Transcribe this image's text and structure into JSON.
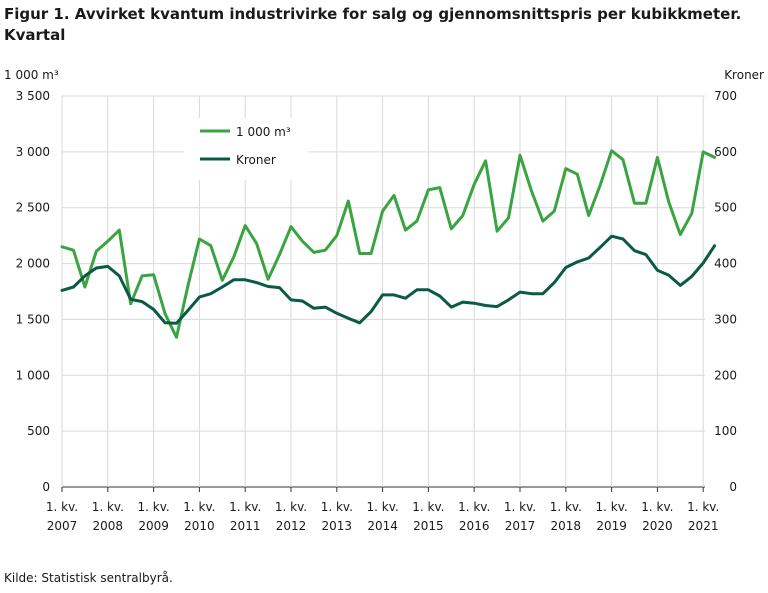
{
  "header": {
    "title": "Figur 1. Avvirket kvantum industrivirke for salg og gjennomsnittspris per kubikkmeter. Kvartal"
  },
  "footer": {
    "source": "Kilde: Statistisk sentralbyrå."
  },
  "chart_data": {
    "type": "line",
    "title": "Figur 1. Avvirket kvantum industrivirke for salg og gjennomsnittspris per kubikkmeter. Kvartal",
    "ylabel_left": "1 000 m³",
    "ylabel_right": "Kroner",
    "ylim_left": [
      0,
      3500
    ],
    "ylim_right": [
      0,
      700
    ],
    "yticks_left": [
      "0",
      "500",
      "1 000",
      "1 500",
      "2 000",
      "2 500",
      "3 000",
      "3 500"
    ],
    "yticks_right": [
      "0",
      "100",
      "200",
      "300",
      "400",
      "500",
      "600",
      "700"
    ],
    "grid": true,
    "legend_position": "top-left",
    "x_tick_labels": [
      {
        "line1": "1. kv.",
        "line2": "2007"
      },
      {
        "line1": "1. kv.",
        "line2": "2008"
      },
      {
        "line1": "1. kv.",
        "line2": "2009"
      },
      {
        "line1": "1. kv.",
        "line2": "2010"
      },
      {
        "line1": "1. kv.",
        "line2": "2011"
      },
      {
        "line1": "1. kv.",
        "line2": "2012"
      },
      {
        "line1": "1. kv.",
        "line2": "2013"
      },
      {
        "line1": "1. kv.",
        "line2": "2014"
      },
      {
        "line1": "1. kv.",
        "line2": "2015"
      },
      {
        "line1": "1. kv.",
        "line2": "2016"
      },
      {
        "line1": "1. kv.",
        "line2": "2017"
      },
      {
        "line1": "1. kv.",
        "line2": "2018"
      },
      {
        "line1": "1. kv.",
        "line2": "2019"
      },
      {
        "line1": "1. kv.",
        "line2": "2020"
      },
      {
        "line1": "1. kv.",
        "line2": "2021"
      }
    ],
    "series": [
      {
        "name": "1 000 m³",
        "axis": "left",
        "color": "#3aa540",
        "values": [
          2150,
          2120,
          1790,
          2110,
          2200,
          2300,
          1640,
          1890,
          1900,
          1550,
          1340,
          1800,
          2220,
          2160,
          1850,
          2060,
          2340,
          2180,
          1860,
          2080,
          2330,
          2200,
          2100,
          2120,
          2250,
          2560,
          2090,
          2090,
          2470,
          2610,
          2300,
          2380,
          2660,
          2680,
          2310,
          2430,
          2710,
          2920,
          2290,
          2410,
          2970,
          2650,
          2380,
          2470,
          2850,
          2800,
          2430,
          2700,
          3010,
          2930,
          2540,
          2540,
          2950,
          2550,
          2260,
          2450,
          3000,
          2950
        ]
      },
      {
        "name": "Kroner",
        "axis": "right",
        "color": "#0b5a45",
        "values": [
          352,
          358,
          378,
          392,
          395,
          378,
          336,
          332,
          318,
          294,
          293,
          316,
          340,
          346,
          358,
          371,
          371,
          366,
          359,
          357,
          335,
          333,
          320,
          322,
          311,
          302,
          294,
          314,
          344,
          344,
          338,
          353,
          353,
          342,
          322,
          331,
          329,
          325,
          323,
          335,
          349,
          346,
          346,
          366,
          393,
          403,
          410,
          429,
          449,
          444,
          423,
          416,
          388,
          379,
          361,
          377,
          401,
          432
        ]
      }
    ]
  }
}
